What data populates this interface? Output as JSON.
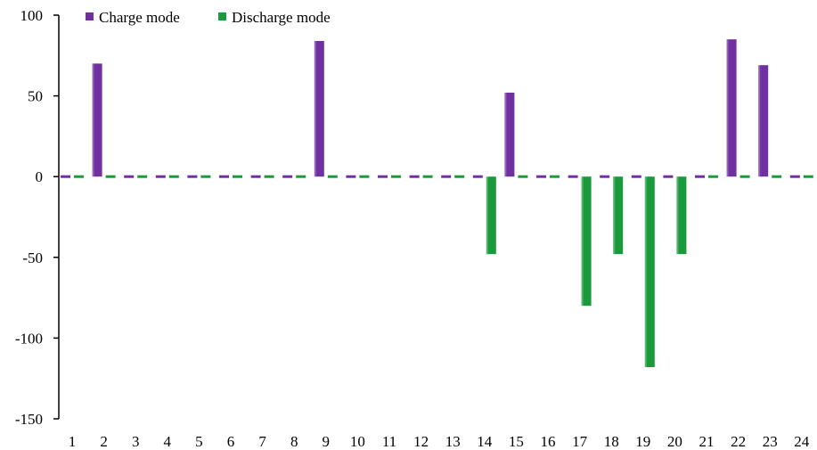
{
  "chart_data": {
    "type": "bar",
    "title": "",
    "xlabel": "",
    "ylabel": "",
    "ylim": [
      -150,
      100
    ],
    "yticks": [
      100,
      50,
      0,
      -50,
      -100,
      -150
    ],
    "categories": [
      "1",
      "2",
      "3",
      "4",
      "5",
      "6",
      "7",
      "8",
      "9",
      "10",
      "11",
      "12",
      "13",
      "14",
      "15",
      "16",
      "17",
      "18",
      "19",
      "20",
      "21",
      "22",
      "23",
      "24"
    ],
    "series": [
      {
        "name": "Charge mode",
        "color": "#7030a0",
        "values": [
          0,
          70,
          0,
          0,
          0,
          0,
          0,
          0,
          84,
          0,
          0,
          0,
          0,
          0,
          52,
          0,
          0,
          0,
          0,
          0,
          0,
          85,
          69,
          0
        ]
      },
      {
        "name": "Discharge mode",
        "color": "#1a9a3a",
        "values": [
          0,
          0,
          0,
          0,
          0,
          0,
          0,
          0,
          0,
          0,
          0,
          0,
          0,
          -48,
          0,
          0,
          -80,
          -48,
          -118,
          -48,
          0,
          0,
          0,
          0
        ]
      }
    ],
    "grid": false,
    "legend": "top-left"
  }
}
